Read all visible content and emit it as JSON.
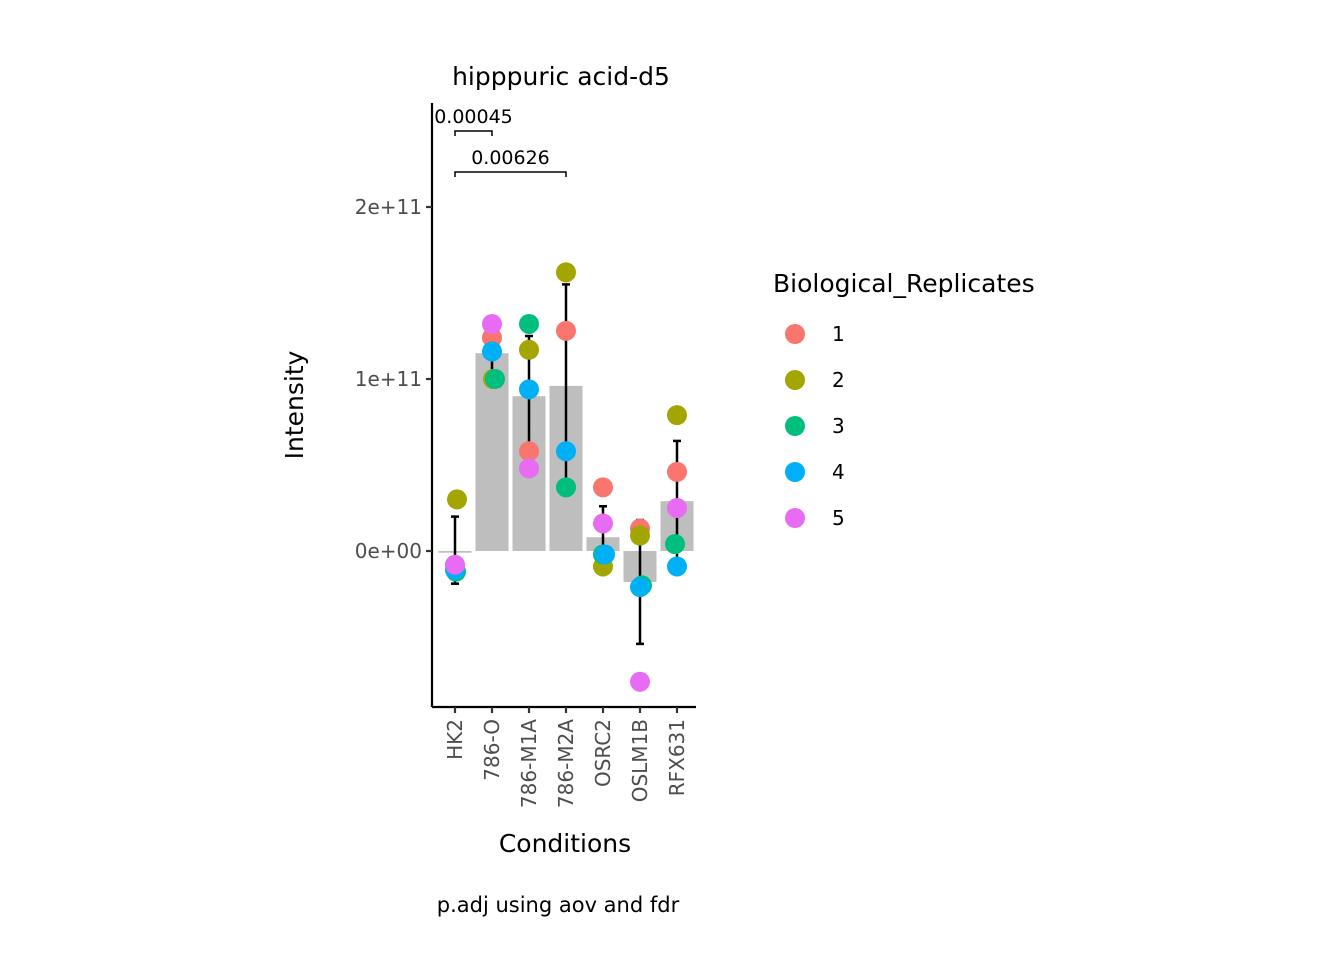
{
  "chart_data": {
    "type": "bar",
    "title": "hipppuric acid-d5",
    "xlabel": "Conditions",
    "ylabel": "Intensity",
    "caption": "p.adj using  aov and fdr",
    "categories": [
      "HK2",
      "786-O",
      "786-M1A",
      "786-M2A",
      "OSRC2",
      "OSLM1B",
      "RFX631"
    ],
    "ylim": [
      -90000000000.0,
      260000000000.0
    ],
    "yticks": [
      0,
      100000000000.0,
      200000000000.0
    ],
    "ytick_labels": [
      "0e+00",
      "1e+11",
      "2e+11"
    ],
    "bar_values": [
      -1000000000.0,
      115000000000.0,
      90000000000.0,
      96000000000.0,
      8000000000.0,
      -18000000000.0,
      29000000000.0
    ],
    "error_bars": [
      {
        "low": -19000000000.0,
        "high": 20000000000.0
      },
      {
        "low": 101000000000.0,
        "high": 128000000000.0
      },
      {
        "low": 56000000000.0,
        "high": 125000000000.0
      },
      {
        "low": 37000000000.0,
        "high": 155000000000.0
      },
      {
        "low": -10000000000.0,
        "high": 26000000000.0
      },
      {
        "low": -54000000000.0,
        "high": 18000000000.0
      },
      {
        "low": -6000000000.0,
        "high": 64000000000.0
      }
    ],
    "legend_title": "Biological_Replicates",
    "legend_position": "right",
    "series": [
      {
        "name": "1",
        "color": "#F8766D",
        "values": [
          -10000000000.0,
          124000000000.0,
          58000000000.0,
          128000000000.0,
          37000000000.0,
          13000000000.0,
          46000000000.0
        ]
      },
      {
        "name": "2",
        "color": "#A3A500",
        "values": [
          30000000000.0,
          100000000000.0,
          117000000000.0,
          162000000000.0,
          -9000000000.0,
          9000000000.0,
          79000000000.0
        ]
      },
      {
        "name": "3",
        "color": "#00BF7D",
        "values": [
          -12000000000.0,
          100000000000.0,
          132000000000.0,
          37000000000.0,
          -2000000000.0,
          -20000000000.0,
          4000000000.0
        ]
      },
      {
        "name": "4",
        "color": "#00B0F6",
        "values": [
          -11000000000.0,
          116000000000.0,
          94000000000.0,
          58000000000.0,
          -2000000000.0,
          -21000000000.0,
          -9000000000.0
        ]
      },
      {
        "name": "5",
        "color": "#E76BF3",
        "values": [
          -8000000000.0,
          132000000000.0,
          48000000000.0,
          null,
          16000000000.0,
          -76000000000.0,
          25000000000.0
        ]
      }
    ],
    "comparisons": [
      {
        "from": "HK2",
        "to": "786-O",
        "label": "0.00045"
      },
      {
        "from": "HK2",
        "to": "786-M2A",
        "label": "0.00626"
      }
    ],
    "bar_color": "#BEBEBE",
    "grid": false
  }
}
